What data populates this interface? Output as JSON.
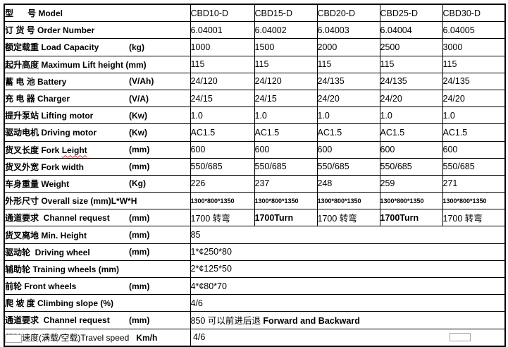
{
  "table": {
    "rows": [
      {
        "name": "model",
        "label": {
          "parts": [
            {
              "t": "型      号 Model"
            }
          ]
        },
        "cells": [
          "CBD10-D",
          "CBD15-D",
          "CBD20-D",
          "CBD25-D",
          "CBD30-D"
        ]
      },
      {
        "name": "order-number",
        "label": {
          "parts": [
            {
              "t": "订 货 号 Order Number"
            }
          ]
        },
        "cells": [
          "6.04001",
          "6.04002",
          "6.04003",
          "6.04004",
          "6.04005"
        ]
      },
      {
        "name": "load-capacity",
        "label": {
          "parts": [
            {
              "t": "额定载重 Load Capacity"
            }
          ],
          "unit": "(kg)"
        },
        "cells": [
          "1000",
          "1500",
          "2000",
          "2500",
          "3000"
        ]
      },
      {
        "name": "lift-height",
        "label": {
          "parts": [
            {
              "t": "起升高度 Maximum Lift height (mm)"
            }
          ]
        },
        "cells": [
          "115",
          "115",
          "115",
          "115",
          "115"
        ]
      },
      {
        "name": "battery",
        "label": {
          "parts": [
            {
              "t": "蓄 电 池 Battery"
            }
          ],
          "unit": "(V/Ah)"
        },
        "cells": [
          "24/120",
          "24/120",
          "24/135",
          "24/135",
          "24/135"
        ]
      },
      {
        "name": "charger",
        "label": {
          "parts": [
            {
              "t": "充 电 器 Charger"
            }
          ],
          "unit": "(V/A)"
        },
        "cells": [
          "24/15",
          "24/15",
          "24/20",
          "24/20",
          "24/20"
        ]
      },
      {
        "name": "lifting-motor",
        "label": {
          "parts": [
            {
              "t": "提升泵站 Lifting motor"
            }
          ],
          "unit": "(Kw)"
        },
        "cells": [
          "1.0",
          "1.0",
          "1.0",
          "1.0",
          "1.0"
        ]
      },
      {
        "name": "driving-motor",
        "label": {
          "parts": [
            {
              "t": "驱动电机 Driving motor"
            }
          ],
          "unit": "(Kw)"
        },
        "cells": [
          "AC1.5",
          "AC1.5",
          "AC1.5",
          "AC1.5",
          "AC1.5"
        ]
      },
      {
        "name": "fork-length",
        "label": {
          "parts": [
            {
              "t": "货叉长度 Fork "
            },
            {
              "t": "Leight",
              "w": 1
            }
          ],
          "unit": "(mm)"
        },
        "cells": [
          "600",
          "600",
          "600",
          "600",
          "600"
        ]
      },
      {
        "name": "fork-width",
        "label": {
          "parts": [
            {
              "t": "货叉外宽 Fork width"
            }
          ],
          "unit": "(mm)"
        },
        "cells": [
          "550/685",
          "550/685",
          "550/685",
          "550/685",
          "550/685"
        ]
      },
      {
        "name": "weight",
        "label": {
          "parts": [
            {
              "t": "车身重量 Weight"
            }
          ],
          "unit": "(Kg)"
        },
        "cells": [
          "226",
          "237",
          "248",
          "259",
          "271"
        ]
      },
      {
        "name": "overall-size",
        "label": {
          "parts": [
            {
              "t": "外形尺寸 Overall size (mm)L*W*H"
            }
          ]
        },
        "cells": [
          {
            "t": "1300*800*1350",
            "cls": "small"
          },
          {
            "t": "1300*800*1350",
            "cls": "small"
          },
          {
            "t": "1300*800*1350",
            "cls": "small"
          },
          {
            "t": "1300*800*1350",
            "cls": "small"
          },
          {
            "t": "1300*800*1350",
            "cls": "small"
          }
        ]
      },
      {
        "name": "channel-request-turn",
        "label": {
          "parts": [
            {
              "t": "通道要求  Channel request"
            }
          ],
          "unit": "(mm)"
        },
        "cells": [
          {
            "t": "1700 转弯"
          },
          {
            "t": "1700Turn",
            "b": 1
          },
          {
            "t": "1700 转弯"
          },
          {
            "t": "1700Turn",
            "b": 1
          },
          {
            "t": "1700 转弯"
          }
        ]
      },
      {
        "name": "min-height",
        "label": {
          "parts": [
            {
              "t": "货叉离地 Min. Height"
            }
          ],
          "unit": "(mm)"
        },
        "span": "85"
      },
      {
        "name": "driving-wheel",
        "label": {
          "parts": [
            {
              "t": "驱动轮  Driving wheel"
            }
          ],
          "unit": "(mm)"
        },
        "span": "1*¢250*80"
      },
      {
        "name": "training-wheels",
        "label": {
          "parts": [
            {
              "t": "辅助轮 Training wheels (mm)"
            }
          ]
        },
        "span": "2*¢125*50"
      },
      {
        "name": "front-wheels",
        "label": {
          "parts": [
            {
              "t": "前轮 Front wheels"
            }
          ],
          "unit": "(mm)"
        },
        "span": "4*¢80*70"
      },
      {
        "name": "climbing-slope",
        "label": {
          "parts": [
            {
              "t": "爬 坡 度 Climbing slope (%)"
            }
          ]
        },
        "span": "4/6"
      },
      {
        "name": "channel-request-length",
        "label": {
          "parts": [
            {
              "t": "通道要求  Channel request"
            }
          ],
          "unit": "(mm)"
        },
        "span": {
          "parts": [
            {
              "t": "850 可以前进后退 ",
              "b": 0
            },
            {
              "t": "Forward and Backward",
              "b": 1
            }
          ]
        }
      },
      {
        "name": "travel-speed",
        "label": {
          "parts": [
            {
              "t": "行驶速度(满载/空载)Travel speed",
              "b": 0
            },
            {
              "t": "   ",
              "b": 0
            },
            {
              "t": "Km/h",
              "b": 1
            }
          ]
        },
        "span": " 4/6"
      }
    ]
  },
  "artifacts": {
    "bottom_left_box": "partial-box",
    "bottom_right_box": "partial-box"
  }
}
